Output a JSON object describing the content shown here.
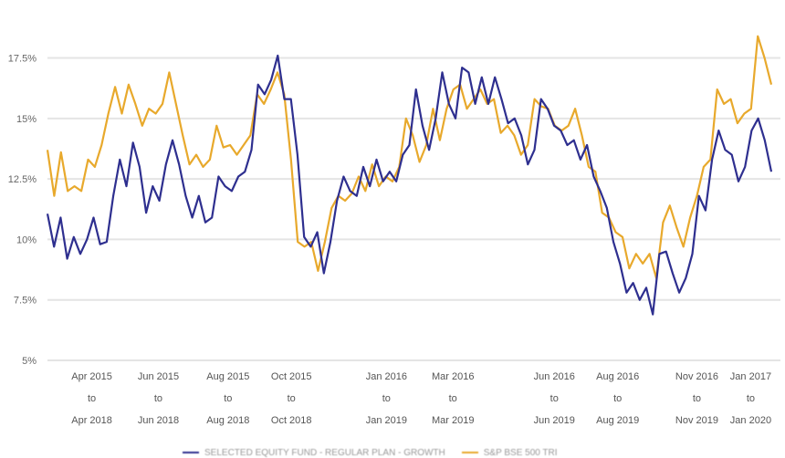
{
  "chart_data": {
    "type": "line",
    "title": "",
    "xlabel": "",
    "ylabel": "",
    "ylim": [
      5,
      18.5
    ],
    "yticks": [
      {
        "value": 5,
        "label": "5%"
      },
      {
        "value": 7.5,
        "label": "7.5%"
      },
      {
        "value": 10,
        "label": "10%"
      },
      {
        "value": 12.5,
        "label": "12.5%"
      },
      {
        "value": 15,
        "label": "15%"
      },
      {
        "value": 17.5,
        "label": "17.5%"
      }
    ],
    "x_domain_months_from_feb_2015": [
      0,
      22.85
    ],
    "xticks": [
      {
        "month": 1.4,
        "lines": [
          "Apr 2015",
          "to",
          "Apr 2018"
        ]
      },
      {
        "month": 3.5,
        "lines": [
          "Jun 2015",
          "to",
          "Jun 2018"
        ]
      },
      {
        "month": 5.7,
        "lines": [
          "Aug 2015",
          "to",
          "Aug 2018"
        ]
      },
      {
        "month": 7.7,
        "lines": [
          "Oct 2015",
          "to",
          "Oct 2018"
        ]
      },
      {
        "month": 10.7,
        "lines": [
          "Jan 2016",
          "to",
          "Jan 2019"
        ]
      },
      {
        "month": 12.8,
        "lines": [
          "Mar 2016",
          "to",
          "Mar 2019"
        ]
      },
      {
        "month": 16.0,
        "lines": [
          "Jun 2016",
          "to",
          "Jun 2019"
        ]
      },
      {
        "month": 18.0,
        "lines": [
          "Aug 2016",
          "to",
          "Aug 2019"
        ]
      },
      {
        "month": 20.5,
        "lines": [
          "Nov 2016",
          "to",
          "Nov 2019"
        ]
      },
      {
        "month": 22.2,
        "lines": [
          "Jan 2017",
          "to",
          "Jan 2020"
        ]
      }
    ],
    "grid": true,
    "legend_position": "bottom",
    "series": [
      {
        "name": "SELECTED EQUITY FUND - REGULAR PLAN - GROWTH",
        "color": "#2e2f8f",
        "values": [
          11.06,
          9.7,
          10.9,
          9.2,
          10.1,
          9.4,
          10.0,
          10.9,
          9.8,
          9.9,
          11.8,
          13.3,
          12.2,
          14.0,
          13.0,
          11.1,
          12.2,
          11.6,
          13.1,
          14.1,
          13.1,
          11.8,
          10.9,
          11.8,
          10.7,
          10.9,
          12.6,
          12.2,
          12.0,
          12.6,
          12.8,
          13.7,
          16.4,
          16.0,
          16.6,
          17.6,
          15.8,
          15.8,
          13.5,
          10.1,
          9.7,
          10.3,
          8.6,
          9.9,
          11.6,
          12.6,
          12.0,
          11.8,
          13.0,
          12.2,
          13.3,
          12.4,
          12.8,
          12.4,
          13.5,
          13.9,
          16.2,
          14.7,
          13.7,
          15.0,
          16.9,
          15.6,
          15.0,
          17.1,
          16.9,
          15.6,
          16.7,
          15.6,
          16.7,
          15.8,
          14.8,
          15.0,
          14.3,
          13.1,
          13.7,
          15.8,
          15.4,
          14.7,
          14.5,
          13.9,
          14.1,
          13.3,
          13.9,
          12.6,
          12.0,
          11.3,
          9.9,
          9.0,
          7.8,
          8.2,
          7.5,
          8.0,
          6.9,
          9.4,
          9.5,
          8.6,
          7.8,
          8.4,
          9.4,
          11.8,
          11.2,
          13.3,
          14.5,
          13.7,
          13.5,
          12.4,
          13.0,
          14.5,
          15.0,
          14.1,
          12.8
        ]
      },
      {
        "name": "S&P BSE 500 TRI",
        "color": "#e8a92c",
        "values": [
          13.7,
          11.8,
          13.6,
          12.0,
          12.2,
          12.0,
          13.3,
          13.0,
          13.9,
          15.2,
          16.3,
          15.2,
          16.4,
          15.6,
          14.7,
          15.4,
          15.2,
          15.6,
          16.9,
          15.6,
          14.3,
          13.1,
          13.5,
          13.0,
          13.3,
          14.7,
          13.8,
          13.9,
          13.5,
          13.9,
          14.3,
          16.0,
          15.6,
          16.2,
          16.9,
          16.0,
          13.3,
          9.9,
          9.7,
          9.9,
          8.7,
          9.9,
          11.3,
          11.8,
          11.6,
          11.9,
          12.6,
          12.0,
          13.1,
          12.2,
          12.6,
          12.4,
          13.0,
          15.0,
          14.3,
          13.2,
          13.9,
          15.4,
          14.1,
          15.4,
          16.2,
          16.4,
          15.4,
          15.8,
          16.2,
          15.6,
          15.8,
          14.4,
          14.7,
          14.3,
          13.5,
          13.9,
          15.8,
          15.5,
          15.4,
          14.7,
          14.5,
          14.7,
          15.4,
          14.3,
          13.0,
          12.8,
          11.1,
          10.9,
          10.3,
          10.1,
          8.8,
          9.4,
          9.0,
          9.4,
          8.4,
          10.7,
          11.4,
          10.5,
          9.7,
          10.9,
          11.8,
          13.0,
          13.3,
          16.2,
          15.6,
          15.8,
          14.8,
          15.2,
          15.4,
          18.4,
          17.5,
          16.4
        ]
      }
    ]
  }
}
